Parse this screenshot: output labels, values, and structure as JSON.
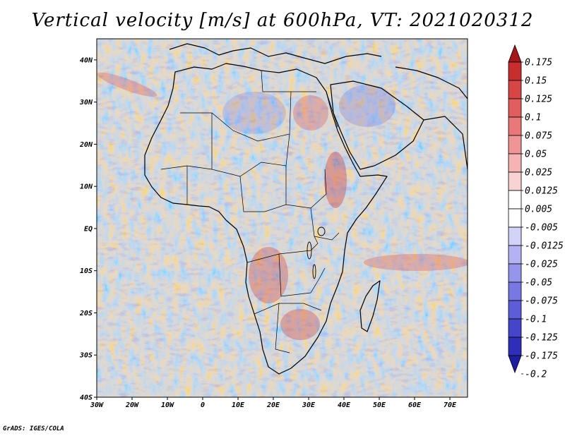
{
  "title": "Vertical velocity [m/s] at 600hPa, VT: 2021020312",
  "credit": "GrADS: IGES/COLA",
  "map": {
    "lon_range": [
      -30,
      75
    ],
    "lat_range": [
      -40,
      45
    ],
    "lon_ticks": [
      "30W",
      "20W",
      "10W",
      "0",
      "10E",
      "20E",
      "30E",
      "40E",
      "50E",
      "60E",
      "70E"
    ],
    "lat_ticks": [
      "40N",
      "30N",
      "20N",
      "10N",
      "EQ",
      "10S",
      "20S",
      "30S",
      "40S"
    ]
  },
  "colorbar": {
    "labels": [
      "0.175",
      "0.15",
      "0.125",
      "0.1",
      "0.075",
      "0.05",
      "0.025",
      "0.0125",
      "0.005",
      "-0.005",
      "-0.0125",
      "-0.025",
      "-0.05",
      "-0.075",
      "-0.1",
      "-0.125",
      "-0.175",
      "-0.2"
    ],
    "colors": [
      "#a3171d",
      "#c72e2e",
      "#d84545",
      "#e25d5d",
      "#ea7878",
      "#f09595",
      "#f5b3b3",
      "#f9d3d3",
      "#ffffff",
      "#ffffff",
      "#d3d3f9",
      "#b3b3f3",
      "#9595ec",
      "#7878e2",
      "#5d5dd8",
      "#4545cc",
      "#2e2eb8",
      "#1d1da0"
    ]
  }
}
